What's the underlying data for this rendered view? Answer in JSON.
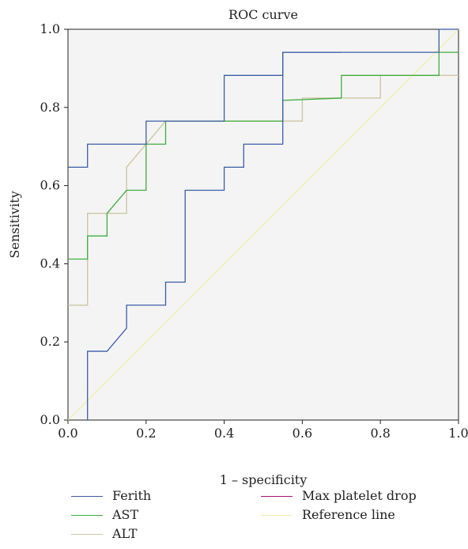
{
  "chart_data": {
    "type": "line",
    "title": "ROC curve",
    "xlabel": "1 – specificity",
    "ylabel": "Sensitivity",
    "xlim": [
      0,
      1
    ],
    "ylim": [
      0,
      1
    ],
    "xticks": [
      "0.0",
      "0.2",
      "0.4",
      "0.6",
      "0.8",
      "1.0"
    ],
    "yticks": [
      "0.0",
      "0.2",
      "0.4",
      "0.6",
      "0.8",
      "1.0"
    ],
    "grid": false,
    "legend_position": "bottom",
    "series": [
      {
        "name": "Ferith",
        "color": "#3b5ea6",
        "points": [
          [
            0.05,
            0
          ],
          [
            0.05,
            0.176
          ],
          [
            0.1,
            0.176
          ],
          [
            0.15,
            0.235
          ],
          [
            0.15,
            0.294
          ],
          [
            0.25,
            0.294
          ],
          [
            0.25,
            0.353
          ],
          [
            0.3,
            0.353
          ],
          [
            0.3,
            0.588
          ],
          [
            0.4,
            0.588
          ],
          [
            0.4,
            0.647
          ],
          [
            0.45,
            0.647
          ],
          [
            0.45,
            0.706
          ],
          [
            0.55,
            0.706
          ],
          [
            0.55,
            0.941
          ],
          [
            0.95,
            0.941
          ],
          [
            0.95,
            1.0
          ],
          [
            1.0,
            1.0
          ]
        ]
      },
      {
        "name": "AST",
        "color": "#3fae3f",
        "points": [
          [
            0,
            0.412
          ],
          [
            0.05,
            0.412
          ],
          [
            0.05,
            0.471
          ],
          [
            0.1,
            0.471
          ],
          [
            0.1,
            0.529
          ],
          [
            0.15,
            0.588
          ],
          [
            0.2,
            0.588
          ],
          [
            0.2,
            0.706
          ],
          [
            0.25,
            0.706
          ],
          [
            0.25,
            0.765
          ],
          [
            0.55,
            0.765
          ],
          [
            0.55,
            0.818
          ],
          [
            0.7,
            0.824
          ],
          [
            0.7,
            0.882
          ],
          [
            0.95,
            0.882
          ],
          [
            0.95,
            0.941
          ],
          [
            1.0,
            0.941
          ]
        ]
      },
      {
        "name": "ALT",
        "color": "#cdc7a4",
        "points": [
          [
            0,
            0.294
          ],
          [
            0.05,
            0.294
          ],
          [
            0.05,
            0.529
          ],
          [
            0.15,
            0.529
          ],
          [
            0.15,
            0.647
          ],
          [
            0.25,
            0.765
          ],
          [
            0.6,
            0.765
          ],
          [
            0.6,
            0.824
          ],
          [
            0.8,
            0.824
          ],
          [
            0.8,
            0.882
          ],
          [
            1.0,
            0.882
          ]
        ]
      },
      {
        "name": "Max platelet drop",
        "color": "#a3127f",
        "points": []
      },
      {
        "name": "Reference line",
        "color": "#eef0a8",
        "points": [
          [
            0,
            0
          ],
          [
            1,
            1
          ]
        ]
      }
    ]
  },
  "extra_ferith_segment": [
    [
      0,
      0.647
    ],
    [
      0.05,
      0.647
    ],
    [
      0.05,
      0.706
    ],
    [
      0.2,
      0.706
    ],
    [
      0.2,
      0.765
    ],
    [
      0.4,
      0.765
    ],
    [
      0.4,
      0.882
    ],
    [
      0.55,
      0.882
    ],
    [
      0.55,
      0.941
    ],
    [
      0.7,
      0.941
    ],
    [
      0.7,
      0.941
    ]
  ]
}
